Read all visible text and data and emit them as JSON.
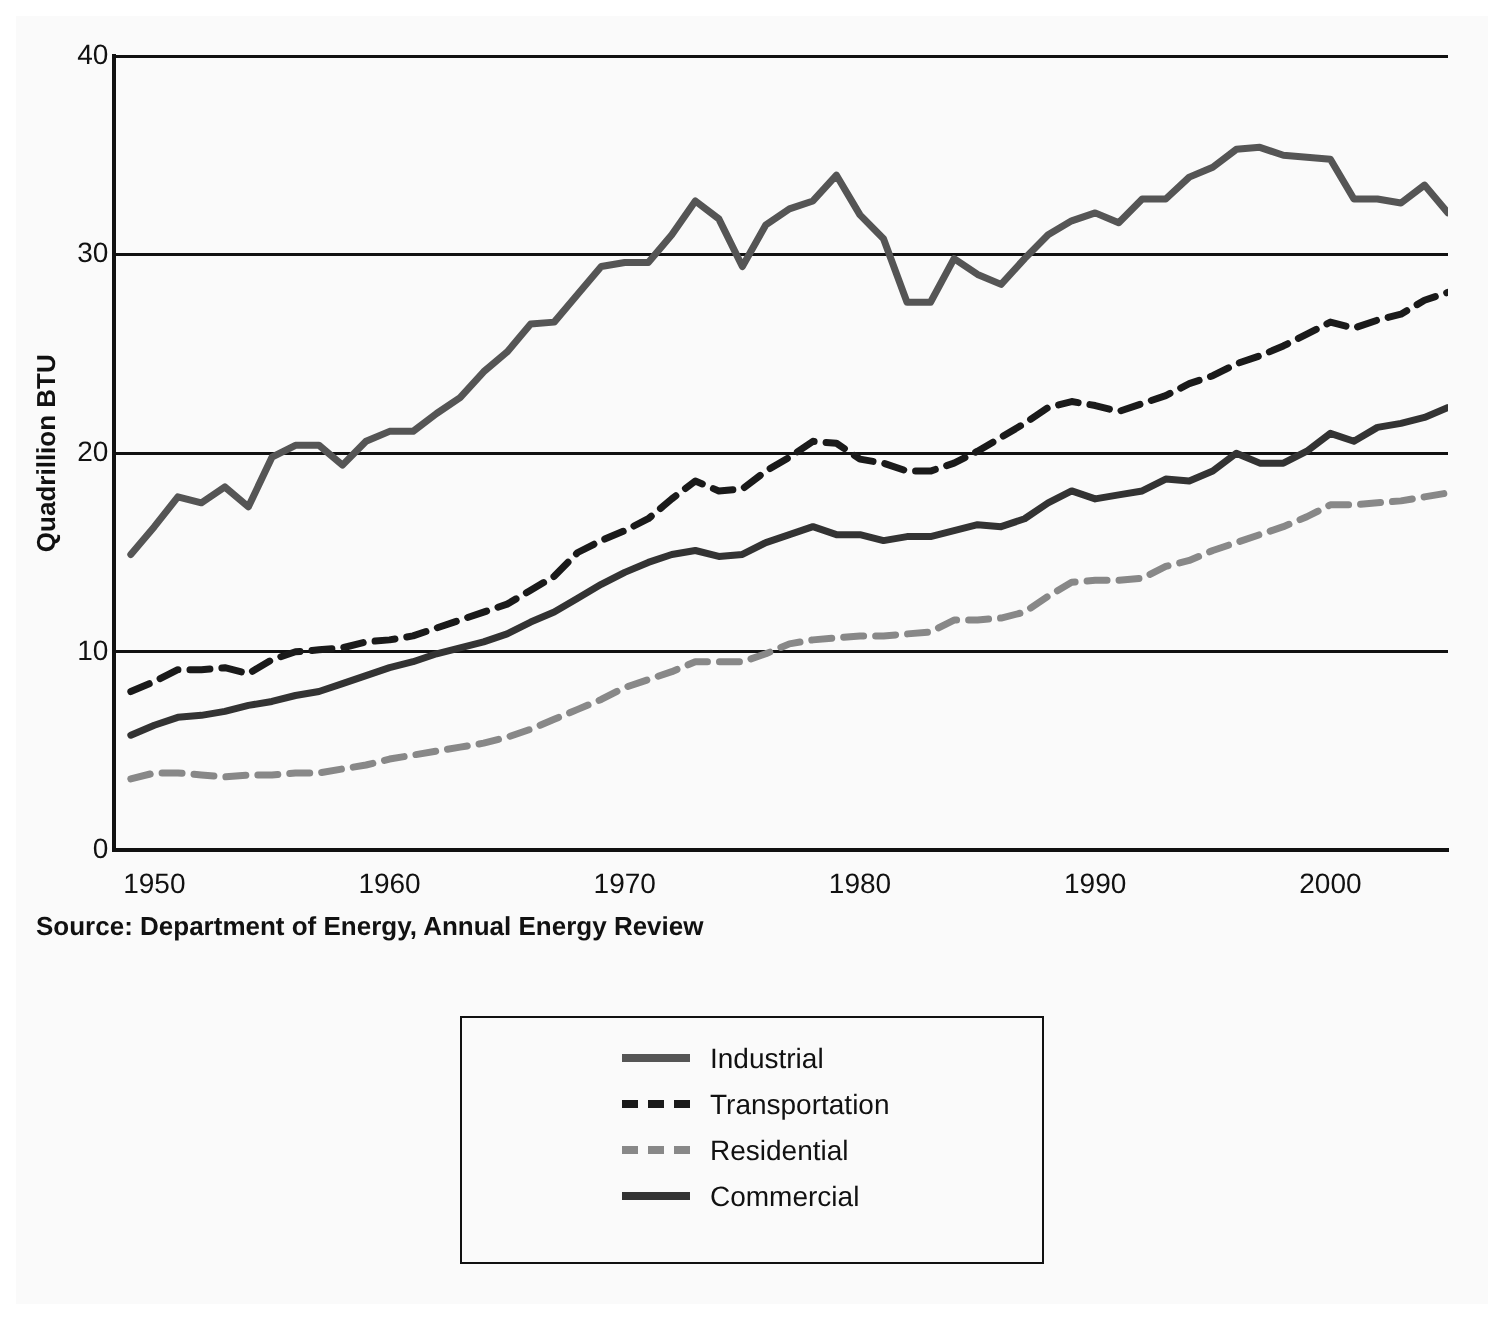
{
  "chart_data": {
    "type": "line",
    "ylabel": "Quadrillion BTU",
    "annotations": [
      "Source: Department of Energy, Annual Energy Review"
    ],
    "x": [
      1949,
      1950,
      1951,
      1952,
      1953,
      1954,
      1955,
      1956,
      1957,
      1958,
      1959,
      1960,
      1961,
      1962,
      1963,
      1964,
      1965,
      1966,
      1967,
      1968,
      1969,
      1970,
      1971,
      1972,
      1973,
      1974,
      1975,
      1976,
      1977,
      1978,
      1979,
      1980,
      1981,
      1982,
      1983,
      1984,
      1985,
      1986,
      1987,
      1988,
      1989,
      1990,
      1991,
      1992,
      1993,
      1994,
      1995,
      1996,
      1997,
      1998,
      1999,
      2000,
      2001,
      2002,
      2003,
      2004,
      2005
    ],
    "series": [
      {
        "name": "Industrial",
        "color": "#555555",
        "line_style": "solid",
        "values": [
          14.9,
          16.3,
          17.8,
          17.5,
          18.3,
          17.3,
          19.8,
          20.4,
          20.4,
          19.4,
          20.6,
          21.1,
          21.1,
          22.0,
          22.8,
          24.1,
          25.1,
          26.5,
          26.6,
          28.0,
          29.4,
          29.6,
          29.6,
          31.0,
          32.7,
          31.8,
          29.4,
          31.5,
          32.3,
          32.7,
          34.0,
          32.0,
          30.8,
          27.6,
          27.6,
          29.8,
          29.0,
          28.5,
          29.8,
          31.0,
          31.7,
          32.1,
          31.6,
          32.8,
          32.8,
          33.9,
          34.4,
          35.3,
          35.4,
          35.0,
          34.9,
          34.8,
          32.8,
          32.8,
          32.6,
          33.5,
          32.1
        ]
      },
      {
        "name": "Transportation",
        "color": "#1a1a1a",
        "line_style": "dashed",
        "values": [
          8.0,
          8.5,
          9.1,
          9.1,
          9.2,
          8.9,
          9.6,
          10.0,
          10.1,
          10.2,
          10.5,
          10.6,
          10.8,
          11.2,
          11.6,
          12.0,
          12.4,
          13.1,
          13.8,
          15.0,
          15.6,
          16.1,
          16.7,
          17.7,
          18.6,
          18.1,
          18.2,
          19.1,
          19.8,
          20.6,
          20.5,
          19.7,
          19.5,
          19.1,
          19.1,
          19.5,
          20.1,
          20.8,
          21.5,
          22.3,
          22.6,
          22.4,
          22.1,
          22.5,
          22.9,
          23.5,
          23.9,
          24.5,
          24.9,
          25.4,
          26.0,
          26.6,
          26.3,
          26.7,
          27.0,
          27.7,
          28.1
        ]
      },
      {
        "name": "Residential",
        "color": "#888888",
        "line_style": "dashed",
        "values": [
          3.6,
          3.9,
          3.9,
          3.8,
          3.7,
          3.8,
          3.8,
          3.9,
          3.9,
          4.1,
          4.3,
          4.6,
          4.8,
          5.0,
          5.2,
          5.4,
          5.7,
          6.1,
          6.6,
          7.1,
          7.6,
          8.2,
          8.6,
          9.0,
          9.5,
          9.5,
          9.5,
          9.9,
          10.4,
          10.6,
          10.7,
          10.8,
          10.8,
          10.9,
          11.0,
          11.6,
          11.6,
          11.7,
          12.0,
          12.8,
          13.5,
          13.6,
          13.6,
          13.7,
          14.3,
          14.6,
          15.1,
          15.5,
          15.9,
          16.3,
          16.8,
          17.4,
          17.4,
          17.5,
          17.6,
          17.8,
          18.0
        ]
      },
      {
        "name": "Commercial",
        "color": "#333333",
        "line_style": "solid",
        "values": [
          5.8,
          6.3,
          6.7,
          6.8,
          7.0,
          7.3,
          7.5,
          7.8,
          8.0,
          8.4,
          8.8,
          9.2,
          9.5,
          9.9,
          10.2,
          10.5,
          10.9,
          11.5,
          12.0,
          12.7,
          13.4,
          14.0,
          14.5,
          14.9,
          15.1,
          14.8,
          14.9,
          15.5,
          15.9,
          16.3,
          15.9,
          15.9,
          15.6,
          15.8,
          15.8,
          16.1,
          16.4,
          16.3,
          16.7,
          17.5,
          18.1,
          17.7,
          17.9,
          18.1,
          18.7,
          18.6,
          19.1,
          20.0,
          19.5,
          19.5,
          20.1,
          21.0,
          20.6,
          21.3,
          21.5,
          21.8,
          22.3
        ]
      }
    ],
    "xlim": [
      1948.3,
      2005
    ],
    "xticks": [
      1950,
      1960,
      1970,
      1980,
      1990,
      2000
    ],
    "ylim": [
      0,
      40
    ],
    "yticks": [
      0,
      10,
      20,
      30,
      40
    ],
    "grid": "y",
    "legend": "bottom",
    "marker": "none"
  }
}
